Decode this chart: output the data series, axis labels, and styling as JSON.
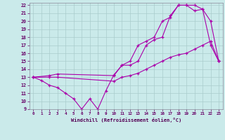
{
  "xlabel": "Windchill (Refroidissement éolien,°C)",
  "xlim": [
    -0.5,
    23.5
  ],
  "ylim": [
    9,
    22.3
  ],
  "xticks": [
    0,
    1,
    2,
    3,
    4,
    5,
    6,
    7,
    8,
    9,
    10,
    11,
    12,
    13,
    14,
    15,
    16,
    17,
    18,
    19,
    20,
    21,
    22,
    23
  ],
  "yticks": [
    9,
    10,
    11,
    12,
    13,
    14,
    15,
    16,
    17,
    18,
    19,
    20,
    21,
    22
  ],
  "bg_color": "#caeaea",
  "grid_color": "#aacccc",
  "line_color": "#aa00aa",
  "line1_x": [
    0,
    1,
    2,
    3,
    4,
    5,
    6,
    7,
    8,
    9,
    10,
    11,
    12,
    13,
    14,
    15,
    16,
    17,
    18,
    19,
    20,
    21,
    22,
    23
  ],
  "line1_y": [
    13,
    12.6,
    12.0,
    11.7,
    11.0,
    10.3,
    9.0,
    10.3,
    9.0,
    11.3,
    13.3,
    14.5,
    15.0,
    17.0,
    17.5,
    18.0,
    20.0,
    20.5,
    22.0,
    22.0,
    22.0,
    21.5,
    17.0,
    15.0
  ],
  "line2_x": [
    0,
    2,
    3,
    10,
    11,
    12,
    13,
    14,
    15,
    16,
    17,
    18,
    19,
    20,
    21,
    22,
    23
  ],
  "line2_y": [
    13,
    13.2,
    13.4,
    13.2,
    14.5,
    14.5,
    15.0,
    17.0,
    17.7,
    18.0,
    20.7,
    22.0,
    22.0,
    21.3,
    21.5,
    20.0,
    15.0
  ],
  "line3_x": [
    0,
    2,
    3,
    10,
    11,
    12,
    13,
    14,
    15,
    16,
    17,
    18,
    19,
    20,
    21,
    22,
    23
  ],
  "line3_y": [
    13,
    13.0,
    13.0,
    12.5,
    13.0,
    13.2,
    13.5,
    14.0,
    14.5,
    15.0,
    15.5,
    15.8,
    16.0,
    16.5,
    17.0,
    17.5,
    15.0
  ]
}
